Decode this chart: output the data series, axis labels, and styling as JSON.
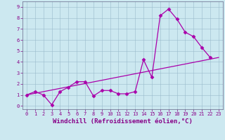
{
  "line1_x": [
    0,
    1,
    2,
    3,
    4,
    5,
    6,
    7,
    8,
    9,
    10,
    11,
    12,
    13,
    14,
    15,
    16,
    17,
    18,
    19,
    20,
    21,
    22
  ],
  "line1_y": [
    1.0,
    1.3,
    1.0,
    0.1,
    1.3,
    1.7,
    2.2,
    2.2,
    0.9,
    1.4,
    1.4,
    1.1,
    1.1,
    1.3,
    4.2,
    2.6,
    8.2,
    8.8,
    7.9,
    6.7,
    6.3,
    5.3,
    4.4
  ],
  "line2_x": [
    0,
    23
  ],
  "line2_y": [
    1.0,
    4.4
  ],
  "bg_color": "#cce8f0",
  "grid_color": "#99bbcc",
  "line_color": "#aa00aa",
  "marker": "D",
  "markersize": 2.5,
  "linewidth": 0.9,
  "xlim": [
    -0.5,
    23.5
  ],
  "ylim": [
    -0.3,
    9.5
  ],
  "xticks": [
    0,
    1,
    2,
    3,
    4,
    5,
    6,
    7,
    8,
    9,
    10,
    11,
    12,
    13,
    14,
    15,
    16,
    17,
    18,
    19,
    20,
    21,
    22,
    23
  ],
  "yticks": [
    0,
    1,
    2,
    3,
    4,
    5,
    6,
    7,
    8,
    9
  ],
  "xlabel": "Windchill (Refroidissement éolien,°C)",
  "tick_fontsize": 5,
  "label_fontsize": 6.5
}
